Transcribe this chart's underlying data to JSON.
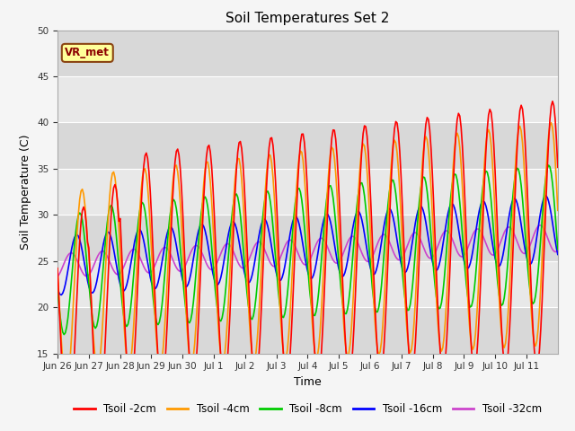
{
  "title": "Soil Temperatures Set 2",
  "xlabel": "Time",
  "ylabel": "Soil Temperature (C)",
  "ylim": [
    15,
    50
  ],
  "yticks": [
    15,
    20,
    25,
    30,
    35,
    40,
    45,
    50
  ],
  "xtick_labels": [
    "Jun 26",
    "Jun 27",
    "Jun 28",
    "Jun 29",
    "Jun 30",
    "Jul 1",
    "Jul 2",
    "Jul 3",
    "Jul 4",
    "Jul 5",
    "Jul 6",
    "Jul 7",
    "Jul 8",
    "Jul 9",
    "Jul 10",
    "Jul 11"
  ],
  "series_colors": [
    "#ff0000",
    "#ff9900",
    "#00cc00",
    "#0000ff",
    "#cc44cc"
  ],
  "series_labels": [
    "Tsoil -2cm",
    "Tsoil -4cm",
    "Tsoil -8cm",
    "Tsoil -16cm",
    "Tsoil -32cm"
  ],
  "vr_met_label": "VR_met",
  "title_fontsize": 11,
  "axis_fontsize": 9,
  "legend_fontsize": 8.5
}
